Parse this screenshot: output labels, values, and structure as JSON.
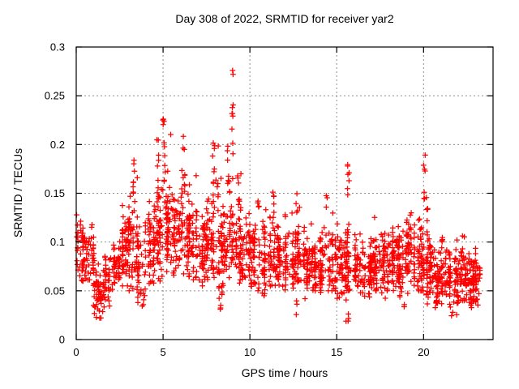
{
  "title": "Day 308 of 2022, SRMTID for receiver yar2",
  "colors": {
    "marker": "#ff0000",
    "border": "#000000",
    "grid": "#909090",
    "background": "#ffffff",
    "text": "#000000"
  },
  "axes": {
    "x": {
      "label": "GPS time / hours",
      "min": 0,
      "max": 24,
      "ticks": [
        0,
        5,
        10,
        15,
        20
      ],
      "tick_labels": [
        "0",
        "5",
        "10",
        "15",
        "20"
      ]
    },
    "y": {
      "label": "SRMTID / TECUs",
      "min": 0,
      "max": 0.3,
      "ticks": [
        0,
        0.05,
        0.1,
        0.15,
        0.2,
        0.25,
        0.3
      ],
      "tick_labels": [
        "0",
        "0.05",
        "0.1",
        "0.15",
        "0.2",
        "0.25",
        "0.3"
      ]
    }
  },
  "chart_data": {
    "type": "scatter",
    "marker": "plus",
    "marker_color": "#ff0000",
    "title": "Day 308 of 2022, SRMTID for receiver yar2",
    "xlabel": "GPS time / hours",
    "ylabel": "SRMTID / TECUs",
    "xlim": [
      0,
      24
    ],
    "ylim": [
      0,
      0.3
    ],
    "grid": true,
    "legend": null,
    "x_data_range": [
      0,
      23.2
    ],
    "n_points_estimate": 2300,
    "notable_points": {
      "max": [
        9.0,
        0.276
      ],
      "min": [
        15.6,
        0.013
      ]
    },
    "summary": "Dense scatter band of SRMTID values mostly 0.05-0.13 TECUs across 0-23.2 h; activity peaks with vertical spike columns up to 0.19-0.23 near 5-9 h, an isolated maximum pair ~0.272-0.276 at 9.0 h, smaller spikes near 15.6 and 20.1 h, and quiet dips to ~0.02 near 1.3, 15.6 and 21.6 h.",
    "band_bins_format": [
      "hour_center",
      "count",
      "median",
      "spread",
      "min",
      "max"
    ],
    "band_bins": [
      [
        0.25,
        46,
        0.095,
        0.03,
        0.06,
        0.135
      ],
      [
        0.75,
        44,
        0.085,
        0.025,
        0.04,
        0.125
      ],
      [
        1.25,
        40,
        0.05,
        0.02,
        0.022,
        0.09
      ],
      [
        1.75,
        40,
        0.06,
        0.02,
        0.03,
        0.1
      ],
      [
        2.25,
        42,
        0.075,
        0.02,
        0.048,
        0.115
      ],
      [
        2.75,
        46,
        0.09,
        0.03,
        0.055,
        0.15
      ],
      [
        3.25,
        48,
        0.1,
        0.038,
        0.05,
        0.18
      ],
      [
        3.75,
        46,
        0.08,
        0.03,
        0.035,
        0.15
      ],
      [
        4.25,
        48,
        0.1,
        0.032,
        0.055,
        0.16
      ],
      [
        4.75,
        50,
        0.11,
        0.038,
        0.06,
        0.195
      ],
      [
        5.25,
        52,
        0.118,
        0.04,
        0.065,
        0.215
      ],
      [
        5.75,
        50,
        0.11,
        0.035,
        0.06,
        0.18
      ],
      [
        6.25,
        50,
        0.115,
        0.038,
        0.055,
        0.2
      ],
      [
        6.75,
        48,
        0.1,
        0.034,
        0.05,
        0.17
      ],
      [
        7.25,
        46,
        0.09,
        0.03,
        0.055,
        0.15
      ],
      [
        7.75,
        48,
        0.1,
        0.035,
        0.045,
        0.185
      ],
      [
        8.25,
        46,
        0.09,
        0.035,
        0.032,
        0.18
      ],
      [
        8.75,
        48,
        0.105,
        0.038,
        0.05,
        0.195
      ],
      [
        9.25,
        46,
        0.1,
        0.034,
        0.055,
        0.18
      ],
      [
        9.75,
        44,
        0.09,
        0.03,
        0.05,
        0.15
      ],
      [
        10.25,
        44,
        0.085,
        0.028,
        0.05,
        0.148
      ],
      [
        10.75,
        44,
        0.08,
        0.028,
        0.045,
        0.14
      ],
      [
        11.25,
        44,
        0.088,
        0.028,
        0.05,
        0.152
      ],
      [
        11.75,
        44,
        0.085,
        0.026,
        0.05,
        0.14
      ],
      [
        12.25,
        44,
        0.08,
        0.026,
        0.048,
        0.135
      ],
      [
        12.75,
        44,
        0.08,
        0.028,
        0.035,
        0.14
      ],
      [
        13.25,
        44,
        0.078,
        0.026,
        0.042,
        0.128
      ],
      [
        13.75,
        44,
        0.075,
        0.024,
        0.05,
        0.125
      ],
      [
        14.25,
        44,
        0.08,
        0.028,
        0.045,
        0.142
      ],
      [
        14.75,
        44,
        0.078,
        0.026,
        0.05,
        0.13
      ],
      [
        15.25,
        44,
        0.075,
        0.026,
        0.04,
        0.132
      ],
      [
        15.75,
        46,
        0.08,
        0.03,
        0.032,
        0.15
      ],
      [
        16.25,
        46,
        0.075,
        0.024,
        0.048,
        0.12
      ],
      [
        16.75,
        46,
        0.072,
        0.024,
        0.04,
        0.118
      ],
      [
        17.25,
        46,
        0.078,
        0.026,
        0.05,
        0.128
      ],
      [
        17.75,
        46,
        0.075,
        0.025,
        0.042,
        0.122
      ],
      [
        18.25,
        50,
        0.085,
        0.028,
        0.05,
        0.14
      ],
      [
        18.75,
        50,
        0.075,
        0.026,
        0.032,
        0.122
      ],
      [
        19.25,
        52,
        0.09,
        0.03,
        0.045,
        0.13
      ],
      [
        19.75,
        50,
        0.08,
        0.027,
        0.05,
        0.128
      ],
      [
        20.25,
        50,
        0.072,
        0.028,
        0.035,
        0.135
      ],
      [
        20.75,
        48,
        0.065,
        0.024,
        0.024,
        0.108
      ],
      [
        21.25,
        48,
        0.068,
        0.024,
        0.03,
        0.115
      ],
      [
        21.75,
        48,
        0.06,
        0.022,
        0.024,
        0.105
      ],
      [
        22.25,
        48,
        0.065,
        0.022,
        0.04,
        0.108
      ],
      [
        22.75,
        48,
        0.06,
        0.022,
        0.032,
        0.1
      ],
      [
        23.05,
        40,
        0.066,
        0.02,
        0.038,
        0.1
      ]
    ],
    "spike_clusters_format": [
      "hour",
      "halfwidth",
      "y_min",
      "y_max",
      "count"
    ],
    "spike_clusters": [
      [
        3.35,
        0.08,
        0.15,
        0.19,
        7
      ],
      [
        4.7,
        0.06,
        0.15,
        0.207,
        6
      ],
      [
        5.05,
        0.07,
        0.14,
        0.228,
        12
      ],
      [
        6.2,
        0.06,
        0.15,
        0.212,
        8
      ],
      [
        7.9,
        0.07,
        0.14,
        0.21,
        10
      ],
      [
        8.15,
        0.05,
        0.13,
        0.2,
        6
      ],
      [
        8.75,
        0.06,
        0.15,
        0.2,
        7
      ],
      [
        9.0,
        0.04,
        0.19,
        0.246,
        8
      ],
      [
        9.35,
        0.06,
        0.14,
        0.185,
        5
      ],
      [
        10.5,
        0.06,
        0.135,
        0.16,
        4
      ],
      [
        11.35,
        0.04,
        0.145,
        0.158,
        3
      ],
      [
        12.7,
        0.05,
        0.125,
        0.15,
        4
      ],
      [
        14.4,
        0.05,
        0.135,
        0.152,
        3
      ],
      [
        15.65,
        0.07,
        0.145,
        0.185,
        7
      ],
      [
        20.05,
        0.06,
        0.14,
        0.19,
        7
      ],
      [
        20.2,
        0.05,
        0.12,
        0.155,
        4
      ]
    ],
    "low_clusters_format": [
      "hour",
      "halfwidth",
      "y_min",
      "y_max",
      "count"
    ],
    "low_clusters": [
      [
        1.35,
        0.2,
        0.022,
        0.05,
        12
      ],
      [
        3.85,
        0.15,
        0.03,
        0.052,
        6
      ],
      [
        8.3,
        0.1,
        0.03,
        0.05,
        5
      ],
      [
        12.65,
        0.06,
        0.025,
        0.042,
        3
      ],
      [
        15.6,
        0.1,
        0.013,
        0.035,
        4
      ],
      [
        18.9,
        0.07,
        0.03,
        0.045,
        3
      ],
      [
        20.6,
        0.2,
        0.03,
        0.05,
        6
      ],
      [
        21.6,
        0.12,
        0.022,
        0.045,
        5
      ],
      [
        23.1,
        0.1,
        0.03,
        0.05,
        4
      ]
    ],
    "extra_points": [
      [
        9.0,
        0.276
      ],
      [
        9.03,
        0.272
      ]
    ],
    "seed": 2022308
  }
}
